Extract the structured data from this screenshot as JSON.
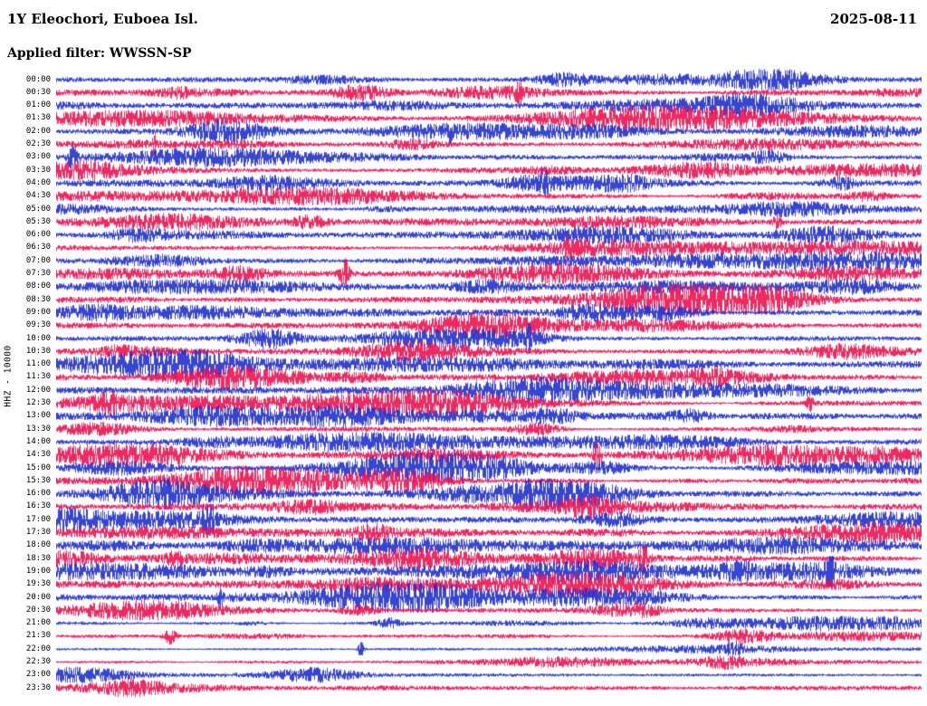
{
  "header": {
    "station_title": "1Y Eleochori, Euboea Isl.",
    "date": "2025-08-11",
    "filter_label": "Applied filter: WWSSN-SP"
  },
  "y_axis": {
    "label": "HHZ - 10000"
  },
  "colors": {
    "background": "#ffffff",
    "text": "#000000",
    "trace_blue": "#2030cf",
    "trace_red": "#f0104e"
  },
  "chart_data": {
    "type": "line",
    "subtype": "helicorder_day_plot",
    "title": "1Y Eleochori, Euboea Isl.",
    "network": "1Y",
    "station_location": "Eleochori, Euboea Isl.",
    "date": "2025-08-11",
    "filter": "WWSSN-SP",
    "channel": "HHZ",
    "amplitude_scale": "10000",
    "minutes_per_row": 30,
    "row_count": 48,
    "rows": [
      "00:00",
      "00:30",
      "01:00",
      "01:30",
      "02:00",
      "02:30",
      "03:00",
      "03:30",
      "04:00",
      "04:30",
      "05:00",
      "05:30",
      "06:00",
      "06:30",
      "07:00",
      "07:30",
      "08:00",
      "08:30",
      "09:00",
      "09:30",
      "10:00",
      "10:30",
      "11:00",
      "11:30",
      "12:00",
      "12:30",
      "13:00",
      "13:30",
      "14:00",
      "14:30",
      "15:00",
      "15:30",
      "16:00",
      "16:30",
      "17:00",
      "17:30",
      "18:00",
      "18:30",
      "19:00",
      "19:30",
      "20:00",
      "20:30",
      "21:00",
      "21:30",
      "22:00",
      "22:30",
      "23:00",
      "23:30"
    ],
    "row_color_pattern": [
      "blue",
      "red"
    ],
    "legend_position": "none",
    "grid": false,
    "description": "Continuous 24-hour seismic waveform record (helicorder) for channel HHZ, drawn as 48 alternating blue/red 30-minute traces of band-filtered ground-motion noise with intermittent higher-amplitude bursts; individual sample values are not resolvable from the plot."
  }
}
